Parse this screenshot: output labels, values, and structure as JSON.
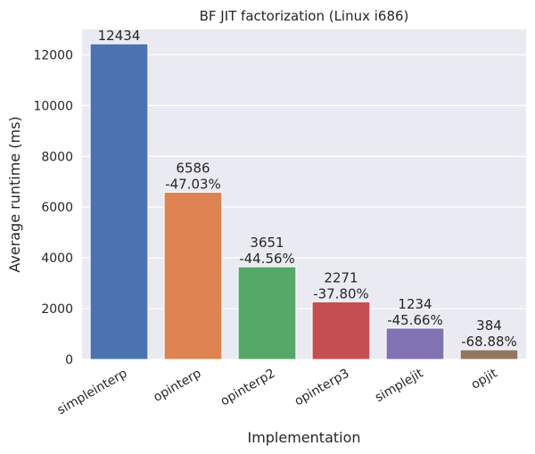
{
  "chart_data": {
    "type": "bar",
    "title": "BF JIT factorization (Linux i686)",
    "xlabel": "Implementation",
    "ylabel": "Average runtime (ms)",
    "ylim": [
      0,
      13000
    ],
    "yticks": [
      0,
      2000,
      4000,
      6000,
      8000,
      10000,
      12000
    ],
    "grid": true,
    "categories": [
      "simpleinterp",
      "opinterp",
      "opinterp2",
      "opinterp3",
      "simplejit",
      "opjit"
    ],
    "values": [
      12434,
      6586,
      3651,
      2271,
      1234,
      384
    ],
    "data_labels": [
      [
        "12434"
      ],
      [
        "6586",
        "-47.03%"
      ],
      [
        "3651",
        "-44.56%"
      ],
      [
        "2271",
        "-37.80%"
      ],
      [
        "1234",
        "-45.66%"
      ],
      [
        "384",
        "-68.88%"
      ]
    ],
    "colors": [
      "#4c72b0",
      "#dd8452",
      "#55a868",
      "#c44e52",
      "#8172b3",
      "#937860"
    ],
    "background": "#eaeaf2",
    "grid_color": "#ffffff"
  }
}
